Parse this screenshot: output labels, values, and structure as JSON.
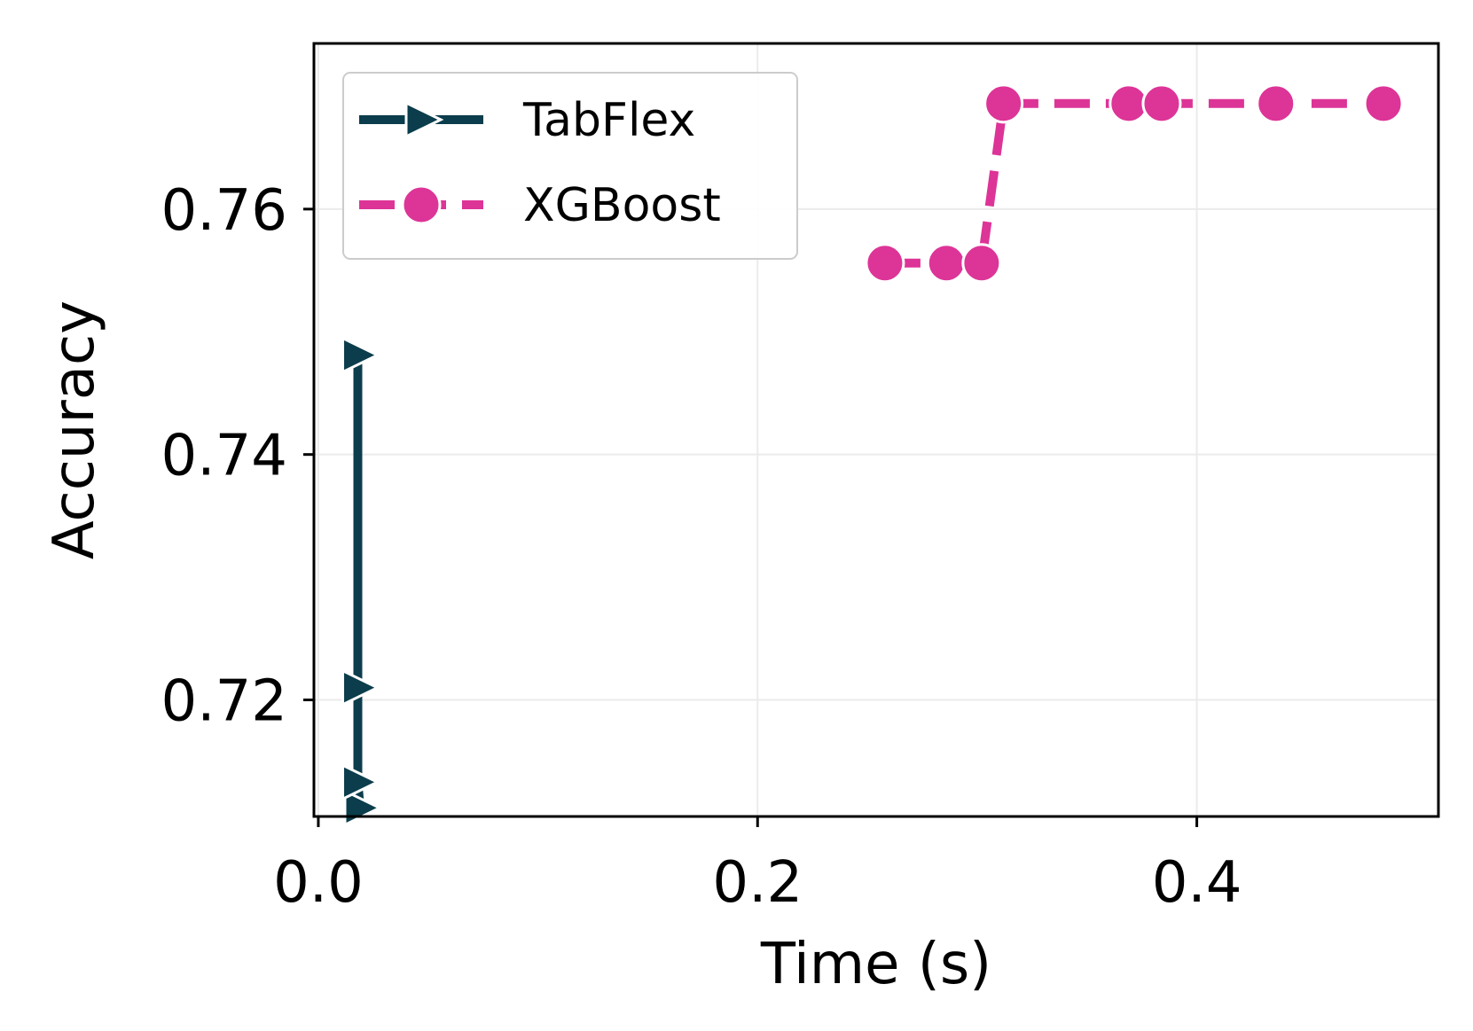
{
  "chart_data": {
    "type": "line",
    "title": "",
    "xlabel": "Time (s)",
    "ylabel": "Accuracy",
    "xlim": [
      -0.002,
      0.51
    ],
    "ylim": [
      0.7105,
      0.7735
    ],
    "xticks": [
      0.0,
      0.2,
      0.4
    ],
    "xtick_labels": [
      "0.0",
      "0.2",
      "0.4"
    ],
    "yticks": [
      0.72,
      0.74,
      0.76
    ],
    "ytick_labels": [
      "0.72",
      "0.74",
      "0.76"
    ],
    "grid": true,
    "legend_position": "top-left",
    "series": [
      {
        "name": "TabFlex",
        "color": "#0b3d4c",
        "marker": "triangle-right",
        "linestyle": "solid",
        "x": [
          0.019,
          0.018,
          0.018,
          0.018
        ],
        "y": [
          0.7112,
          0.7133,
          0.721,
          0.7481
        ]
      },
      {
        "name": "XGBoost",
        "color": "#dd3497",
        "marker": "circle",
        "linestyle": "dashed",
        "x": [
          0.258,
          0.286,
          0.302,
          0.312,
          0.369,
          0.384,
          0.436,
          0.484,
          0.485
        ],
        "y": [
          0.7556,
          0.7556,
          0.7556,
          0.7686,
          0.7686,
          0.7686,
          0.7686,
          0.7686,
          0.7686
        ]
      }
    ]
  }
}
